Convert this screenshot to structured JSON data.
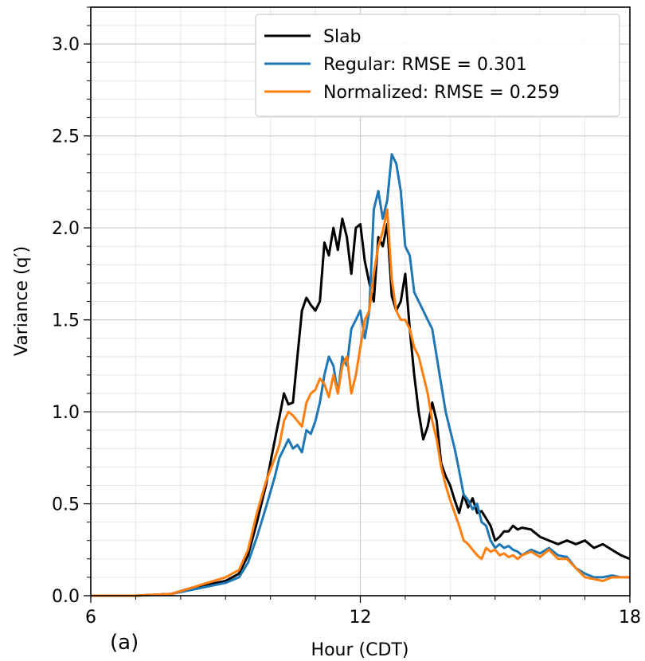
{
  "chart_data": {
    "type": "line",
    "panel_label": "(a)",
    "xlabel": "Hour (CDT)",
    "ylabel": "Variance (q′)",
    "xlim": [
      6,
      18
    ],
    "ylim": [
      0,
      3.2
    ],
    "x_ticks": [
      6,
      12,
      18
    ],
    "x_tick_labels": [
      "6",
      "12",
      "18"
    ],
    "y_ticks": [
      0.0,
      0.5,
      1.0,
      1.5,
      2.0,
      2.5,
      3.0
    ],
    "y_tick_labels": [
      "0.0",
      "0.5",
      "1.0",
      "1.5",
      "2.0",
      "2.5",
      "3.0"
    ],
    "grid": true,
    "legend_position": "top-right",
    "series": [
      {
        "name": "Slab",
        "color": "#000000",
        "x": [
          6.0,
          7.0,
          7.8,
          8.2,
          8.6,
          9.0,
          9.3,
          9.5,
          9.7,
          9.9,
          10.1,
          10.2,
          10.3,
          10.4,
          10.5,
          10.6,
          10.7,
          10.8,
          10.9,
          11.0,
          11.1,
          11.2,
          11.3,
          11.4,
          11.5,
          11.6,
          11.7,
          11.8,
          11.9,
          12.0,
          12.1,
          12.2,
          12.3,
          12.4,
          12.5,
          12.6,
          12.7,
          12.8,
          12.9,
          13.0,
          13.1,
          13.2,
          13.3,
          13.4,
          13.5,
          13.6,
          13.7,
          13.8,
          13.9,
          14.0,
          14.1,
          14.2,
          14.3,
          14.4,
          14.5,
          14.6,
          14.7,
          14.8,
          14.9,
          15.0,
          15.1,
          15.2,
          15.3,
          15.4,
          15.5,
          15.6,
          15.8,
          16.0,
          16.2,
          16.4,
          16.6,
          16.8,
          17.0,
          17.2,
          17.4,
          17.6,
          17.8,
          18.0
        ],
        "values": [
          0.0,
          0.0,
          0.01,
          0.04,
          0.06,
          0.08,
          0.12,
          0.22,
          0.4,
          0.6,
          0.85,
          0.97,
          1.1,
          1.04,
          1.05,
          1.3,
          1.55,
          1.62,
          1.58,
          1.55,
          1.6,
          1.92,
          1.85,
          2.0,
          1.88,
          2.05,
          1.95,
          1.75,
          2.0,
          2.02,
          1.82,
          1.7,
          1.6,
          1.95,
          1.9,
          2.02,
          1.63,
          1.55,
          1.6,
          1.75,
          1.45,
          1.2,
          1.0,
          0.85,
          0.92,
          1.05,
          0.95,
          0.72,
          0.65,
          0.6,
          0.52,
          0.45,
          0.55,
          0.48,
          0.53,
          0.45,
          0.46,
          0.42,
          0.38,
          0.3,
          0.32,
          0.35,
          0.35,
          0.38,
          0.36,
          0.37,
          0.36,
          0.32,
          0.3,
          0.28,
          0.3,
          0.28,
          0.3,
          0.26,
          0.28,
          0.25,
          0.22,
          0.2
        ]
      },
      {
        "name": "Regular: RMSE = 0.301",
        "color": "#1f77b4",
        "x": [
          6.0,
          7.0,
          7.8,
          8.2,
          8.6,
          9.0,
          9.3,
          9.5,
          9.7,
          9.9,
          10.1,
          10.2,
          10.3,
          10.4,
          10.5,
          10.6,
          10.7,
          10.8,
          10.9,
          11.0,
          11.1,
          11.2,
          11.3,
          11.4,
          11.5,
          11.6,
          11.7,
          11.8,
          11.9,
          12.0,
          12.1,
          12.2,
          12.3,
          12.4,
          12.5,
          12.6,
          12.7,
          12.8,
          12.9,
          13.0,
          13.1,
          13.2,
          13.3,
          13.4,
          13.5,
          13.6,
          13.7,
          13.8,
          13.9,
          14.0,
          14.1,
          14.2,
          14.3,
          14.4,
          14.5,
          14.6,
          14.7,
          14.8,
          14.9,
          15.0,
          15.1,
          15.2,
          15.3,
          15.4,
          15.5,
          15.6,
          15.8,
          16.0,
          16.2,
          16.4,
          16.6,
          16.8,
          17.0,
          17.2,
          17.4,
          17.6,
          17.8,
          18.0
        ],
        "values": [
          0.0,
          0.0,
          0.01,
          0.03,
          0.05,
          0.07,
          0.1,
          0.18,
          0.32,
          0.48,
          0.65,
          0.75,
          0.8,
          0.85,
          0.8,
          0.82,
          0.78,
          0.9,
          0.88,
          0.95,
          1.05,
          1.2,
          1.3,
          1.25,
          1.1,
          1.3,
          1.25,
          1.45,
          1.5,
          1.55,
          1.4,
          1.55,
          2.1,
          2.2,
          2.05,
          2.15,
          2.4,
          2.35,
          2.2,
          1.9,
          1.85,
          1.65,
          1.6,
          1.55,
          1.5,
          1.45,
          1.3,
          1.15,
          1.0,
          0.9,
          0.8,
          0.68,
          0.55,
          0.52,
          0.47,
          0.5,
          0.4,
          0.38,
          0.3,
          0.26,
          0.28,
          0.26,
          0.27,
          0.25,
          0.24,
          0.22,
          0.25,
          0.23,
          0.26,
          0.22,
          0.21,
          0.15,
          0.12,
          0.1,
          0.1,
          0.11,
          0.1,
          0.1
        ]
      },
      {
        "name": "Normalized: RMSE = 0.259",
        "color": "#ff7f0e",
        "x": [
          6.0,
          7.0,
          7.8,
          8.2,
          8.6,
          9.0,
          9.3,
          9.5,
          9.7,
          9.9,
          10.1,
          10.2,
          10.3,
          10.4,
          10.5,
          10.6,
          10.7,
          10.8,
          10.9,
          11.0,
          11.1,
          11.2,
          11.3,
          11.4,
          11.5,
          11.6,
          11.7,
          11.8,
          11.9,
          12.0,
          12.1,
          12.2,
          12.3,
          12.4,
          12.5,
          12.6,
          12.7,
          12.8,
          12.9,
          13.0,
          13.1,
          13.2,
          13.3,
          13.4,
          13.5,
          13.6,
          13.7,
          13.8,
          13.9,
          14.0,
          14.1,
          14.2,
          14.3,
          14.4,
          14.5,
          14.6,
          14.7,
          14.8,
          14.9,
          15.0,
          15.1,
          15.2,
          15.3,
          15.4,
          15.5,
          15.6,
          15.8,
          16.0,
          16.2,
          16.4,
          16.6,
          16.8,
          17.0,
          17.2,
          17.4,
          17.6,
          17.8,
          18.0
        ],
        "values": [
          0.0,
          0.0,
          0.01,
          0.04,
          0.07,
          0.1,
          0.14,
          0.25,
          0.45,
          0.62,
          0.75,
          0.82,
          0.95,
          1.0,
          0.98,
          0.95,
          0.92,
          1.05,
          1.1,
          1.12,
          1.18,
          1.15,
          1.08,
          1.2,
          1.1,
          1.25,
          1.3,
          1.1,
          1.2,
          1.35,
          1.5,
          1.55,
          1.75,
          1.9,
          1.98,
          2.1,
          1.72,
          1.55,
          1.5,
          1.5,
          1.45,
          1.35,
          1.3,
          1.2,
          1.1,
          0.95,
          0.85,
          0.7,
          0.6,
          0.52,
          0.45,
          0.38,
          0.3,
          0.28,
          0.25,
          0.22,
          0.2,
          0.26,
          0.24,
          0.25,
          0.22,
          0.23,
          0.21,
          0.22,
          0.2,
          0.22,
          0.24,
          0.21,
          0.25,
          0.2,
          0.2,
          0.15,
          0.1,
          0.09,
          0.08,
          0.1,
          0.1,
          0.1
        ]
      }
    ]
  }
}
